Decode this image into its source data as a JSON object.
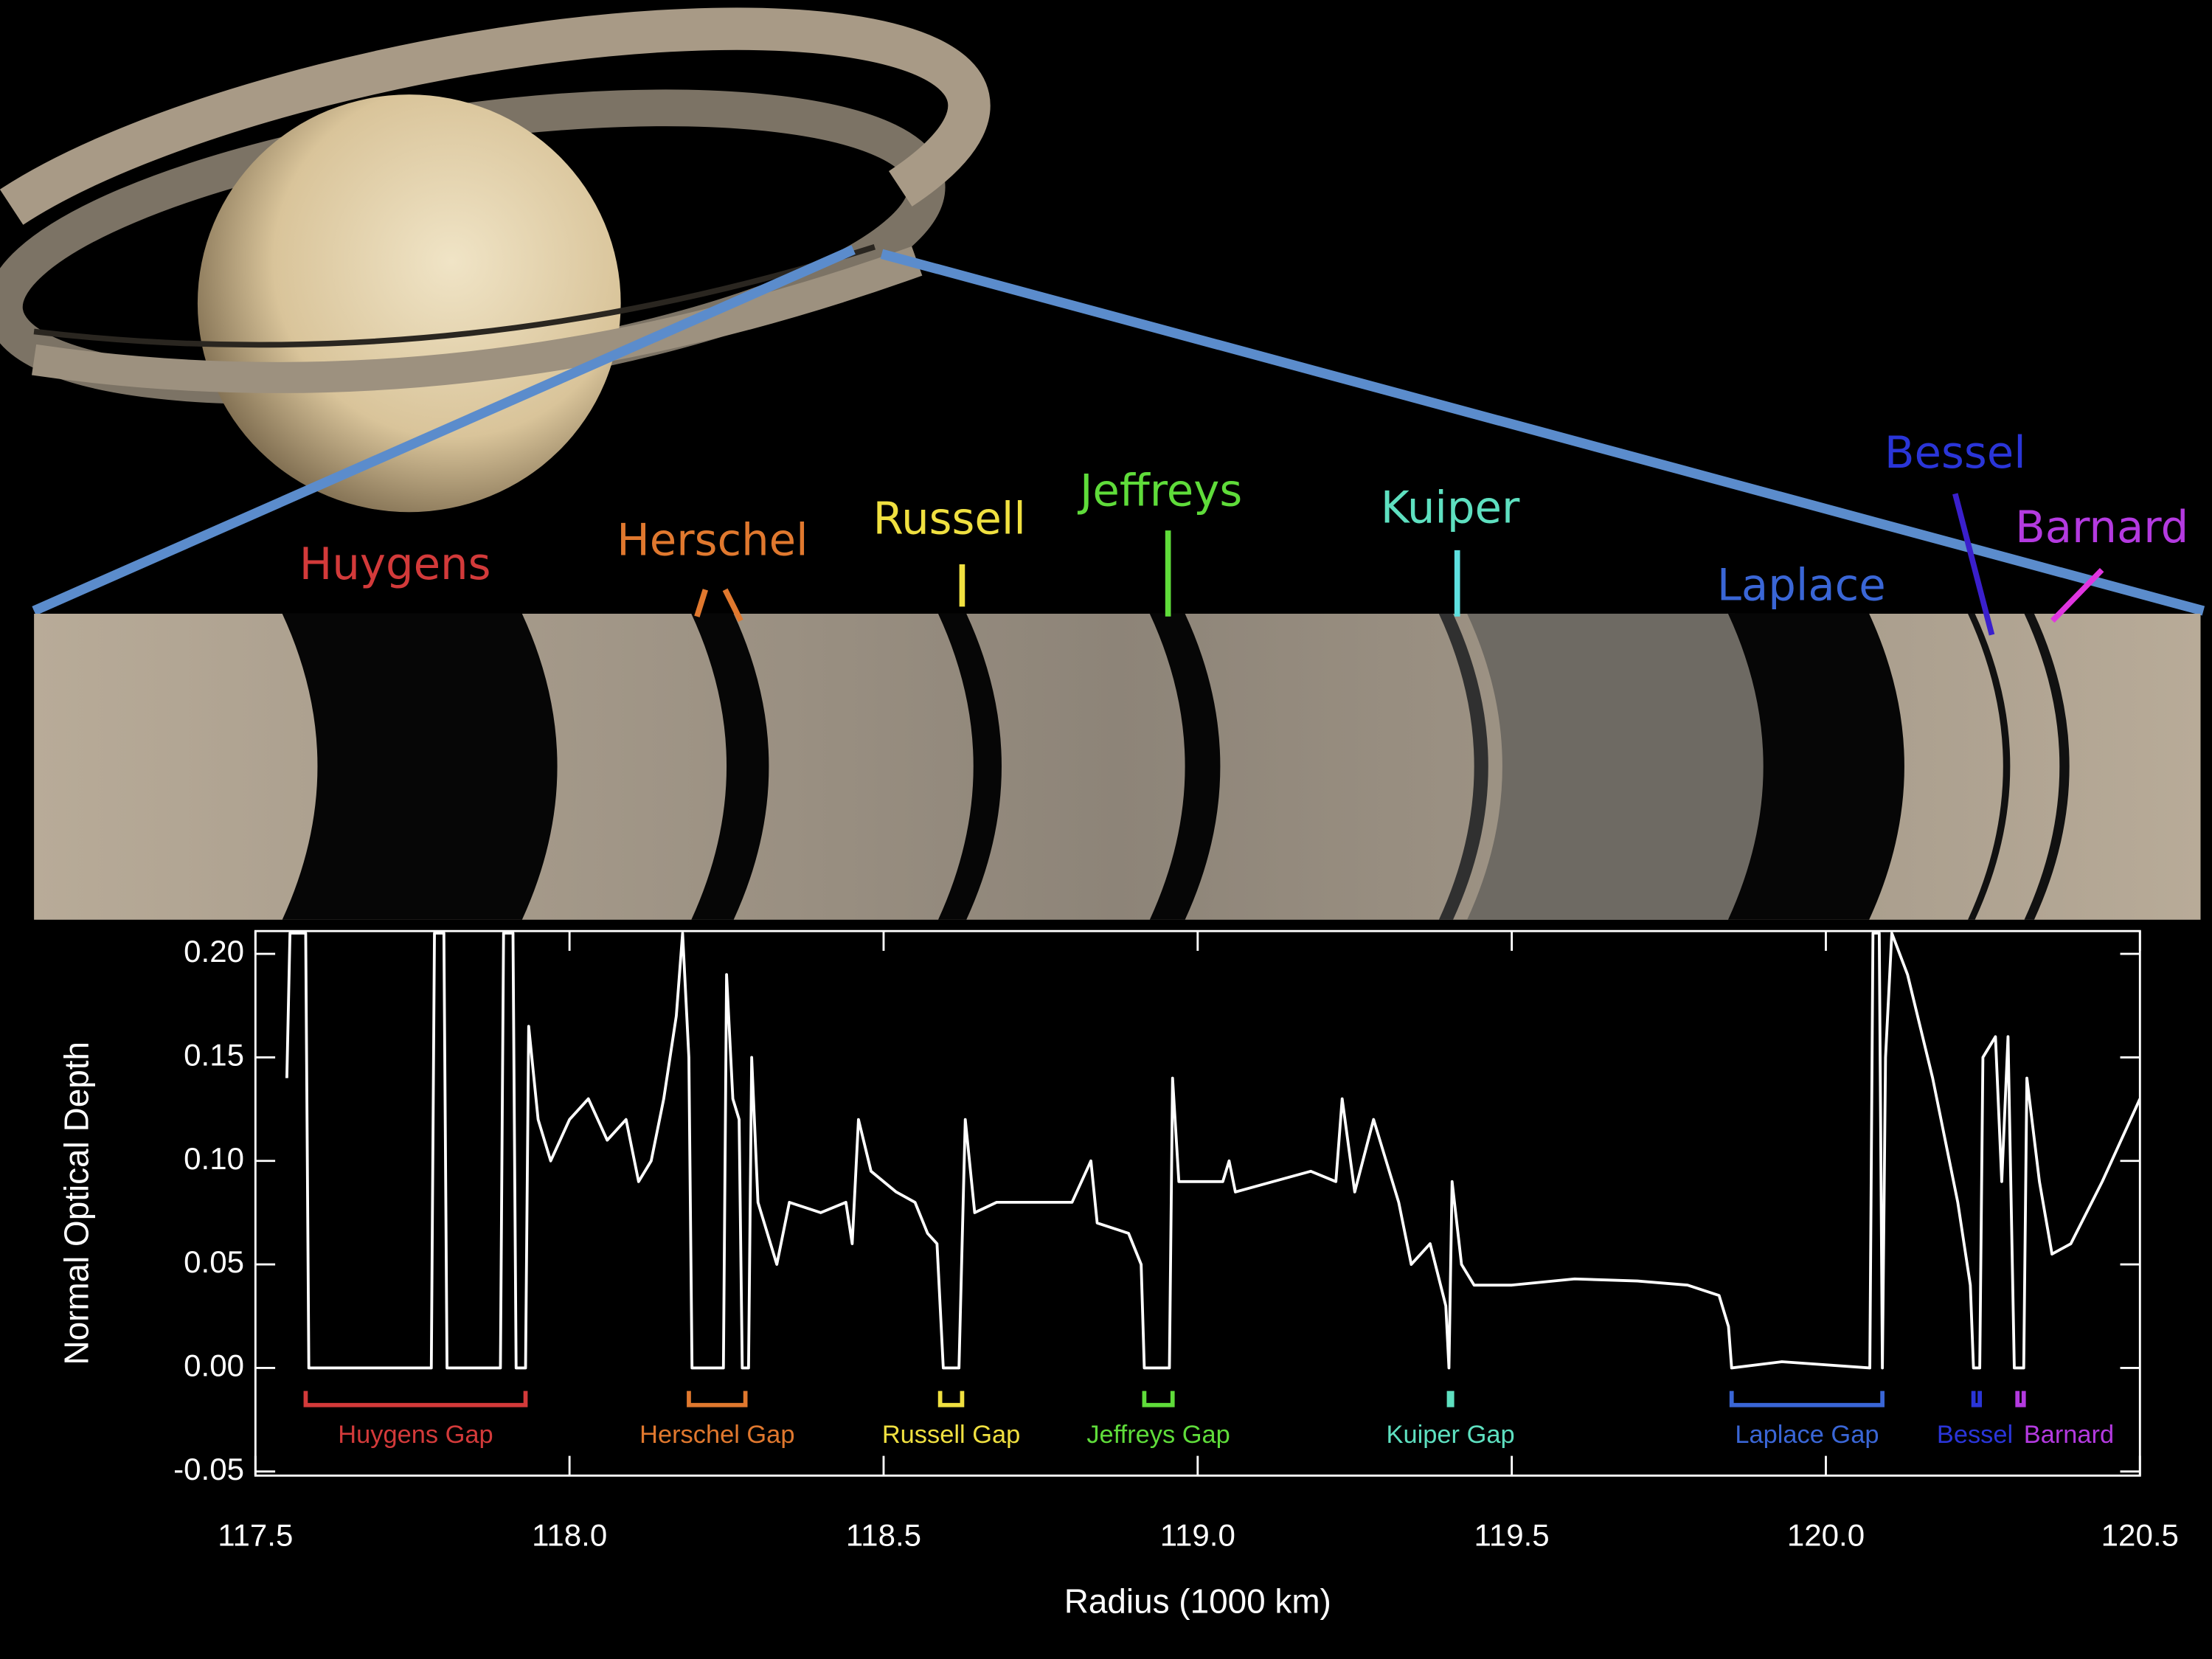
{
  "chart_data": {
    "type": "line",
    "xlabel": "Radius (1000 km)",
    "ylabel": "Normal Optical Depth",
    "xlim": [
      117.5,
      120.5
    ],
    "ylim": [
      -0.052,
      0.211
    ],
    "xticks": [
      117.5,
      {
        "value": 118.0,
        "label": "118.0"
      },
      118.5,
      {
        "value": 119.0,
        "label": "119.0"
      },
      119.5,
      {
        "value": 120.0,
        "label": "120.0"
      },
      120.5
    ],
    "yticks": [
      {
        "value": 0.2,
        "label": "0.20"
      },
      0.15,
      {
        "value": 0.1,
        "label": "0.10"
      },
      0.05,
      {
        "value": 0,
        "label": "0.00"
      },
      -0.05
    ],
    "color": "#ffffff",
    "x": [
      117.55,
      117.555,
      117.58,
      117.585,
      117.78,
      117.785,
      117.8,
      117.805,
      117.89,
      117.895,
      117.91,
      117.915,
      117.93,
      117.935,
      117.95,
      117.97,
      118.0,
      118.03,
      118.06,
      118.09,
      118.11,
      118.13,
      118.15,
      118.17,
      118.18,
      118.19,
      118.195,
      118.245,
      118.25,
      118.26,
      118.27,
      118.275,
      118.285,
      118.29,
      118.3,
      118.32,
      118.33,
      118.35,
      118.4,
      118.44,
      118.45,
      118.46,
      118.48,
      118.52,
      118.55,
      118.57,
      118.585,
      118.595,
      118.62,
      118.63,
      118.645,
      118.68,
      118.75,
      118.8,
      118.83,
      118.84,
      118.89,
      118.91,
      118.915,
      118.955,
      118.96,
      118.97,
      119.0,
      119.04,
      119.05,
      119.06,
      119.12,
      119.18,
      119.22,
      119.23,
      119.25,
      119.28,
      119.3,
      119.32,
      119.34,
      119.37,
      119.395,
      119.4,
      119.405,
      119.42,
      119.44,
      119.5,
      119.6,
      119.7,
      119.78,
      119.83,
      119.845,
      119.85,
      119.93,
      120.07,
      120.075,
      120.085,
      120.09,
      120.095,
      120.105,
      120.13,
      120.17,
      120.19,
      120.21,
      120.23,
      120.235,
      120.245,
      120.25,
      120.27,
      120.28,
      120.29,
      120.3,
      120.315,
      120.32,
      120.34,
      120.36,
      120.39,
      120.44,
      120.5
    ],
    "values": [
      0.14,
      0.21,
      0.21,
      0,
      0,
      0.21,
      0.21,
      0,
      0,
      0.21,
      0.21,
      0,
      0,
      0.165,
      0.12,
      0.1,
      0.12,
      0.13,
      0.11,
      0.12,
      0.09,
      0.1,
      0.13,
      0.17,
      0.21,
      0.15,
      0,
      0,
      0.19,
      0.13,
      0.12,
      0,
      0,
      0.15,
      0.08,
      0.06,
      0.05,
      0.08,
      0.075,
      0.08,
      0.06,
      0.12,
      0.095,
      0.085,
      0.08,
      0.065,
      0.06,
      0,
      0,
      0.12,
      0.075,
      0.08,
      0.08,
      0.08,
      0.1,
      0.07,
      0.065,
      0.05,
      0,
      0,
      0.14,
      0.09,
      0.09,
      0.09,
      0.1,
      0.085,
      0.09,
      0.095,
      0.09,
      0.13,
      0.085,
      0.12,
      0.1,
      0.08,
      0.05,
      0.06,
      0.03,
      0,
      0.09,
      0.05,
      0.04,
      0.04,
      0.043,
      0.042,
      0.04,
      0.035,
      0.02,
      0,
      0.003,
      0,
      0.21,
      0.21,
      0,
      0.15,
      0.21,
      0.19,
      0.14,
      0.11,
      0.08,
      0.04,
      0,
      0,
      0.15,
      0.16,
      0.09,
      0.16,
      0,
      0,
      0.14,
      0.09,
      0.055,
      0.06,
      0.09,
      0.13
    ],
    "gaps": [
      {
        "name": "Huygens Gap",
        "photo_label": "Huygens",
        "color": "#d33a3a",
        "range": [
          117.58,
          117.93
        ]
      },
      {
        "name": "Herschel Gap",
        "photo_label": "Herschel",
        "color": "#e0782e",
        "range": [
          118.19,
          118.28
        ]
      },
      {
        "name": "Russell Gap",
        "photo_label": "Russell",
        "color": "#f0e040",
        "range": [
          118.59,
          118.625
        ]
      },
      {
        "name": "Jeffreys Gap",
        "photo_label": "Jeffreys",
        "color": "#5fdc3a",
        "range": [
          118.915,
          118.96
        ]
      },
      {
        "name": "Kuiper Gap",
        "photo_label": "Kuiper",
        "color": "#5ee0c0",
        "range": [
          119.4,
          119.405
        ]
      },
      {
        "name": "Laplace Gap",
        "photo_label": "Laplace",
        "color": "#3a66d6",
        "range": [
          119.85,
          120.09
        ]
      },
      {
        "name": "Bessel",
        "photo_label": "Bessel",
        "color": "#2a35d8",
        "range": [
          120.235,
          120.245
        ]
      },
      {
        "name": "Barnard",
        "photo_label": "Barnard",
        "color": "#b43ae0",
        "range": [
          120.305,
          120.315
        ]
      }
    ]
  }
}
